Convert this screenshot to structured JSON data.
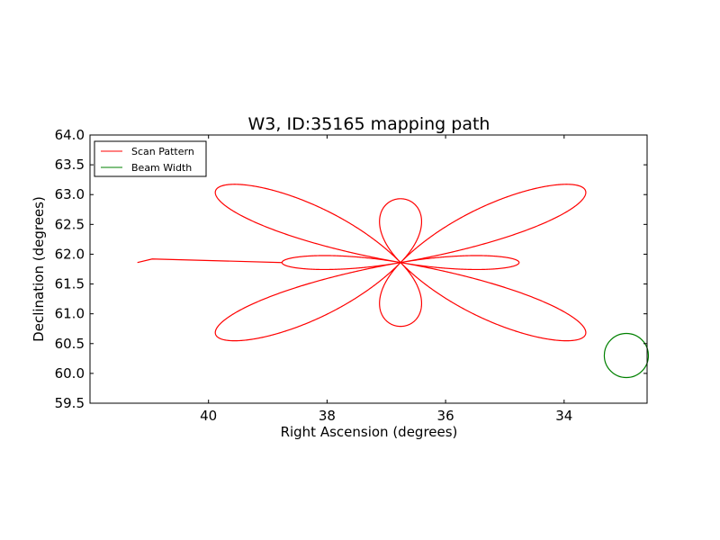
{
  "chart_data": {
    "type": "line",
    "title": "W3, ID:35165 mapping path",
    "xlabel": "Right Ascension (degrees)",
    "ylabel": "Declination (degrees)",
    "xlim": [
      42.0,
      32.6
    ],
    "ylim": [
      59.5,
      64.0
    ],
    "x_inverted": true,
    "xticks": [
      "40",
      "38",
      "36",
      "34"
    ],
    "xtick_values": [
      40,
      38,
      36,
      34
    ],
    "yticks": [
      "59.5",
      "60.0",
      "60.5",
      "61.0",
      "61.5",
      "62.0",
      "62.5",
      "63.0",
      "63.5",
      "64.0"
    ],
    "ytick_values": [
      59.5,
      60.0,
      60.5,
      61.0,
      61.5,
      62.0,
      62.5,
      63.0,
      63.5,
      64.0
    ],
    "grid": false,
    "legend": {
      "placement": "top-left",
      "entries": [
        "Scan Pattern",
        "Beam Width"
      ]
    },
    "series": [
      {
        "name": "Scan Pattern",
        "color": "#ff0000",
        "shape": "rose",
        "center": [
          36.76,
          61.86
        ],
        "lobes": 8,
        "lobe_lengths_deg": [
          2.0,
          4.3,
          2.55,
          4.3,
          2.0,
          4.3,
          2.55,
          4.3
        ],
        "lead_in": [
          [
            41.2,
            61.86
          ],
          [
            40.95,
            61.92
          ]
        ]
      },
      {
        "name": "Beam Width",
        "color": "#008000",
        "shape": "circle",
        "center": [
          32.95,
          60.3
        ],
        "radius": 0.37
      }
    ]
  }
}
